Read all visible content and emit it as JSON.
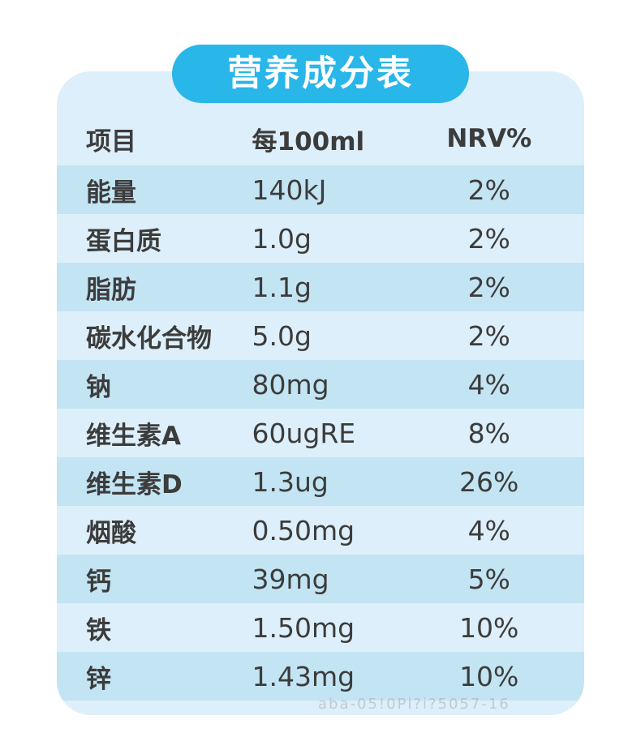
{
  "title": "营养成分表",
  "table": {
    "headers": {
      "item": "项目",
      "per": "每100ml",
      "nrv": "NRV%"
    },
    "rows": [
      {
        "name": "能量",
        "value": "140kJ",
        "nrv": "2%"
      },
      {
        "name": "蛋白质",
        "value": "1.0g",
        "nrv": "2%"
      },
      {
        "name": "脂肪",
        "value": "1.1g",
        "nrv": "2%"
      },
      {
        "name": "碳水化合物",
        "value": "5.0g",
        "nrv": "2%"
      },
      {
        "name": "钠",
        "value": "80mg",
        "nrv": "4%"
      },
      {
        "name": "维生素A",
        "value": "60ugRE",
        "nrv": "8%"
      },
      {
        "name": "维生素D",
        "value": "1.3ug",
        "nrv": "26%"
      },
      {
        "name": "烟酸",
        "value": "0.50mg",
        "nrv": "4%"
      },
      {
        "name": "钙",
        "value": "39mg",
        "nrv": "5%"
      },
      {
        "name": "铁",
        "value": "1.50mg",
        "nrv": "10%"
      },
      {
        "name": "锌",
        "value": "1.43mg",
        "nrv": "10%"
      }
    ]
  },
  "colors": {
    "tab_blue": "#29b6e8",
    "card_background": "#ddeffa",
    "band_blue": "#c3e4f3",
    "text": "#3c3c3c"
  },
  "watermark": "aba-05!0Pl?i?5057-16"
}
